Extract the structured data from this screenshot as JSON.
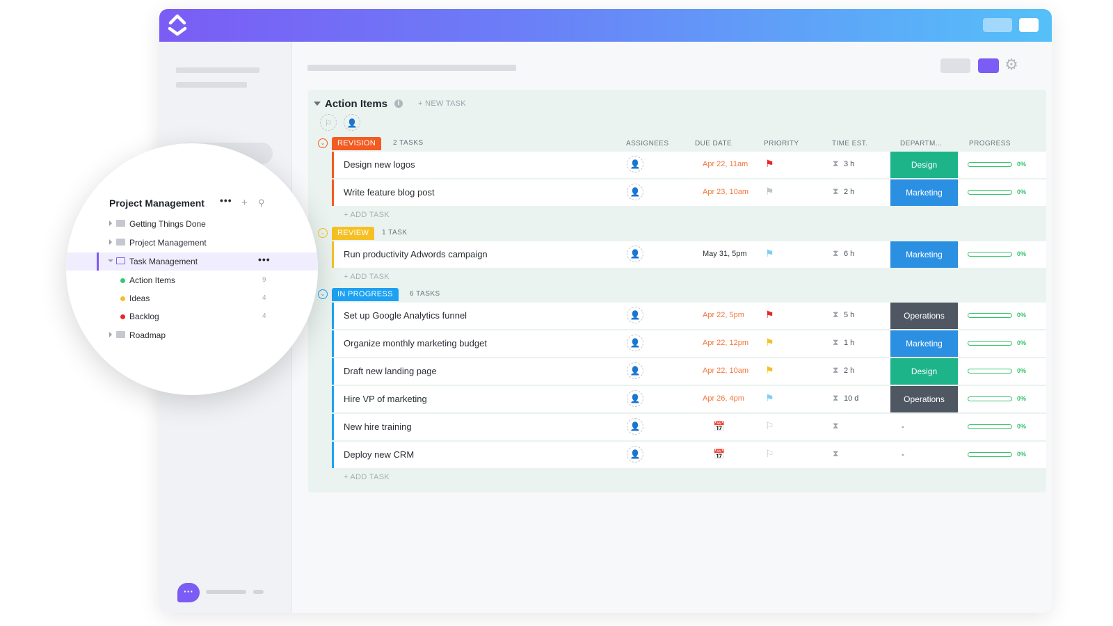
{
  "colors": {
    "accent": "#7b5cf5",
    "revision": "#f35b20",
    "review": "#f6c024",
    "in_progress": "#1da1f2",
    "design": "#1db489",
    "marketing": "#2b8fe2",
    "operations": "#4f5763",
    "progress": "#33c46a",
    "urgent_flag": "#e92828",
    "high_flag": "#f6c024",
    "normal_flag": "#7fd0f3",
    "none_flag": "#c2c5cc"
  },
  "list": {
    "title": "Action Items",
    "new_task_label": "+ NEW TASK",
    "columns": {
      "assignees": "ASSIGNEES",
      "due_date": "DUE DATE",
      "priority": "PRIORITY",
      "time_est": "TIME EST.",
      "department": "DEPARTM...",
      "progress": "PROGRESS"
    },
    "add_task_label": "+ ADD TASK",
    "groups": [
      {
        "status": "REVISION",
        "count": "2 TASKS",
        "color": "#f35b20",
        "tasks": [
          {
            "name": "Design new logos",
            "due": "Apr 22, 11am",
            "due_overdue": true,
            "priority": "urgent",
            "time": "3 h",
            "department": "Design",
            "progress": "0%"
          },
          {
            "name": "Write feature blog post",
            "due": "Apr 23, 10am",
            "due_overdue": true,
            "priority": "low",
            "time": "2 h",
            "department": "Marketing",
            "progress": "0%"
          }
        ]
      },
      {
        "status": "REVIEW",
        "count": "1 TASK",
        "color": "#f6c024",
        "tasks": [
          {
            "name": "Run productivity Adwords campaign",
            "due": "May 31, 5pm",
            "due_overdue": false,
            "priority": "normal",
            "time": "6 h",
            "department": "Marketing",
            "progress": "0%"
          }
        ]
      },
      {
        "status": "IN PROGRESS",
        "count": "6 TASKS",
        "color": "#1da1f2",
        "tasks": [
          {
            "name": "Set up Google Analytics funnel",
            "due": "Apr 22, 5pm",
            "due_overdue": true,
            "priority": "urgent",
            "time": "5 h",
            "department": "Operations",
            "progress": "0%"
          },
          {
            "name": "Organize monthly marketing budget",
            "due": "Apr 22, 12pm",
            "due_overdue": true,
            "priority": "high",
            "time": "1 h",
            "department": "Marketing",
            "progress": "0%"
          },
          {
            "name": "Draft new landing page",
            "due": "Apr 22, 10am",
            "due_overdue": true,
            "priority": "high",
            "time": "2 h",
            "department": "Design",
            "progress": "0%"
          },
          {
            "name": "Hire VP of marketing",
            "due": "Apr 26, 4pm",
            "due_overdue": true,
            "priority": "normal",
            "time": "10 d",
            "department": "Operations",
            "progress": "0%"
          },
          {
            "name": "New hire training",
            "due": "",
            "due_overdue": false,
            "priority": "none",
            "time": "",
            "department": "-",
            "progress": "0%"
          },
          {
            "name": "Deploy new CRM",
            "due": "",
            "due_overdue": false,
            "priority": "none",
            "time": "",
            "department": "-",
            "progress": "0%"
          }
        ]
      }
    ]
  },
  "sidebar_zoom": {
    "title": "Project Management",
    "more_icon": "more-dots-icon",
    "items": [
      {
        "label": "Getting Things Done",
        "type": "folder"
      },
      {
        "label": "Project Management",
        "type": "folder"
      },
      {
        "label": "Task Management",
        "type": "folder-open",
        "selected": true
      },
      {
        "label": "Action Items",
        "type": "list",
        "dot": "#2ecc71",
        "count": "9"
      },
      {
        "label": "Ideas",
        "type": "list",
        "dot": "#f6c024",
        "count": "4"
      },
      {
        "label": "Backlog",
        "type": "list",
        "dot": "#e92828",
        "count": "4"
      },
      {
        "label": "Roadmap",
        "type": "folder"
      }
    ]
  }
}
